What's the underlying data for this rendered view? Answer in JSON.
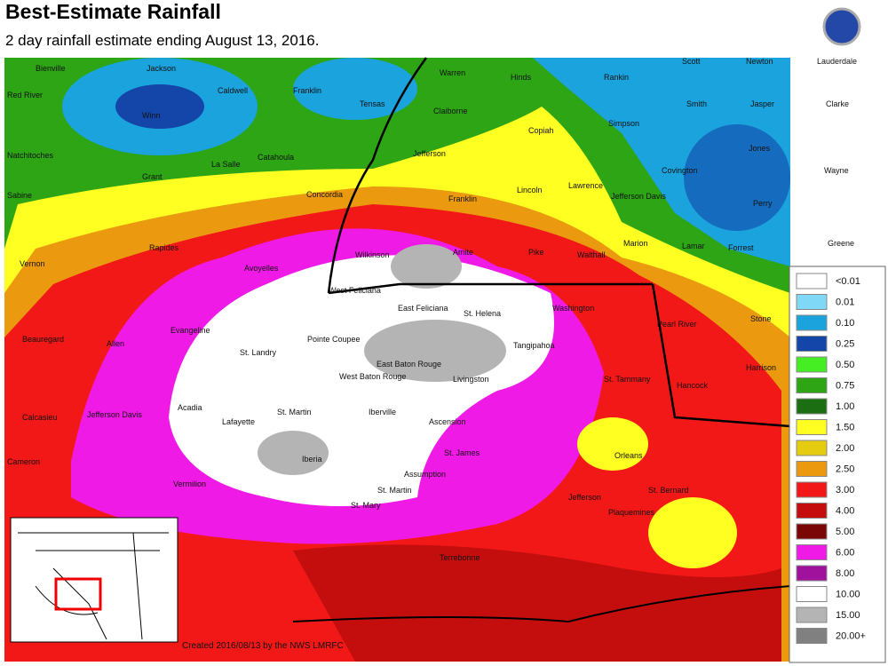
{
  "header": {
    "title": "Best-Estimate Rainfall",
    "subtitle": "2 day rainfall estimate ending August 13, 2016."
  },
  "legend": {
    "items": [
      {
        "label": "<0.01",
        "color": "#ffffff"
      },
      {
        "label": "0.01",
        "color": "#7fd8f5"
      },
      {
        "label": "0.10",
        "color": "#1aa3dd"
      },
      {
        "label": "0.25",
        "color": "#1346a8"
      },
      {
        "label": "0.50",
        "color": "#44ee22"
      },
      {
        "label": "0.75",
        "color": "#2da515"
      },
      {
        "label": "1.00",
        "color": "#1b6e12"
      },
      {
        "label": "1.50",
        "color": "#ffff22"
      },
      {
        "label": "2.00",
        "color": "#e6cc10"
      },
      {
        "label": "2.50",
        "color": "#eb9a10"
      },
      {
        "label": "3.00",
        "color": "#f21818"
      },
      {
        "label": "4.00",
        "color": "#c40e0e"
      },
      {
        "label": "5.00",
        "color": "#7a0606"
      },
      {
        "label": "6.00",
        "color": "#f01ae6"
      },
      {
        "label": "8.00",
        "color": "#a0129c"
      },
      {
        "label": "10.00",
        "color": "#ffffff"
      },
      {
        "label": "15.00",
        "color": "#b4b4b4"
      },
      {
        "label": "20.00+",
        "color": "#808080"
      }
    ]
  },
  "parishes": [
    "Bienville",
    "Jackson",
    "Caldwell",
    "Franklin",
    "Tensas",
    "Warren",
    "Hinds",
    "Rankin",
    "Scott",
    "Newton",
    "Lauderdale",
    "Red River",
    "Winn",
    "Claiborne",
    "Copiah",
    "Simpson",
    "Smith",
    "Jasper",
    "Clarke",
    "Natchitoches",
    "Grant",
    "La Salle",
    "Catahoula",
    "Concordia",
    "Jefferson",
    "Franklin",
    "Lincoln",
    "Lawrence",
    "Jefferson Davis",
    "Covington",
    "Jones",
    "Wayne",
    "Sabine",
    "Rapides",
    "Avoyelles",
    "Wilkinson",
    "Amite",
    "Pike",
    "Walthall",
    "Marion",
    "Lamar",
    "Forrest",
    "Perry",
    "Greene",
    "Vernon",
    "West Feliciana",
    "East Feliciana",
    "St. Helena",
    "Washington",
    "Pearl River",
    "Stone",
    "Beauregard",
    "Allen",
    "Evangeline",
    "St. Landry",
    "Pointe Coupee",
    "East Baton Rouge",
    "Livingston",
    "Tangipahoa",
    "West Baton Rouge",
    "St. Tammany",
    "Hancock",
    "Calcasieu",
    "Jefferson Davis",
    "Acadia",
    "Lafayette",
    "St. Martin",
    "Iberville",
    "Ascension",
    "St. James",
    "Assumption",
    "Iberia",
    "Vermilion",
    "St. Martin",
    "St. Mary",
    "Orleans",
    "St. Bernard",
    "Jefferson",
    "Plaquemines",
    "Terrebonne",
    "Cameron",
    "Harrison"
  ],
  "footer": {
    "credit": "Created 2016/08/13 by the NWS LMRFC"
  }
}
